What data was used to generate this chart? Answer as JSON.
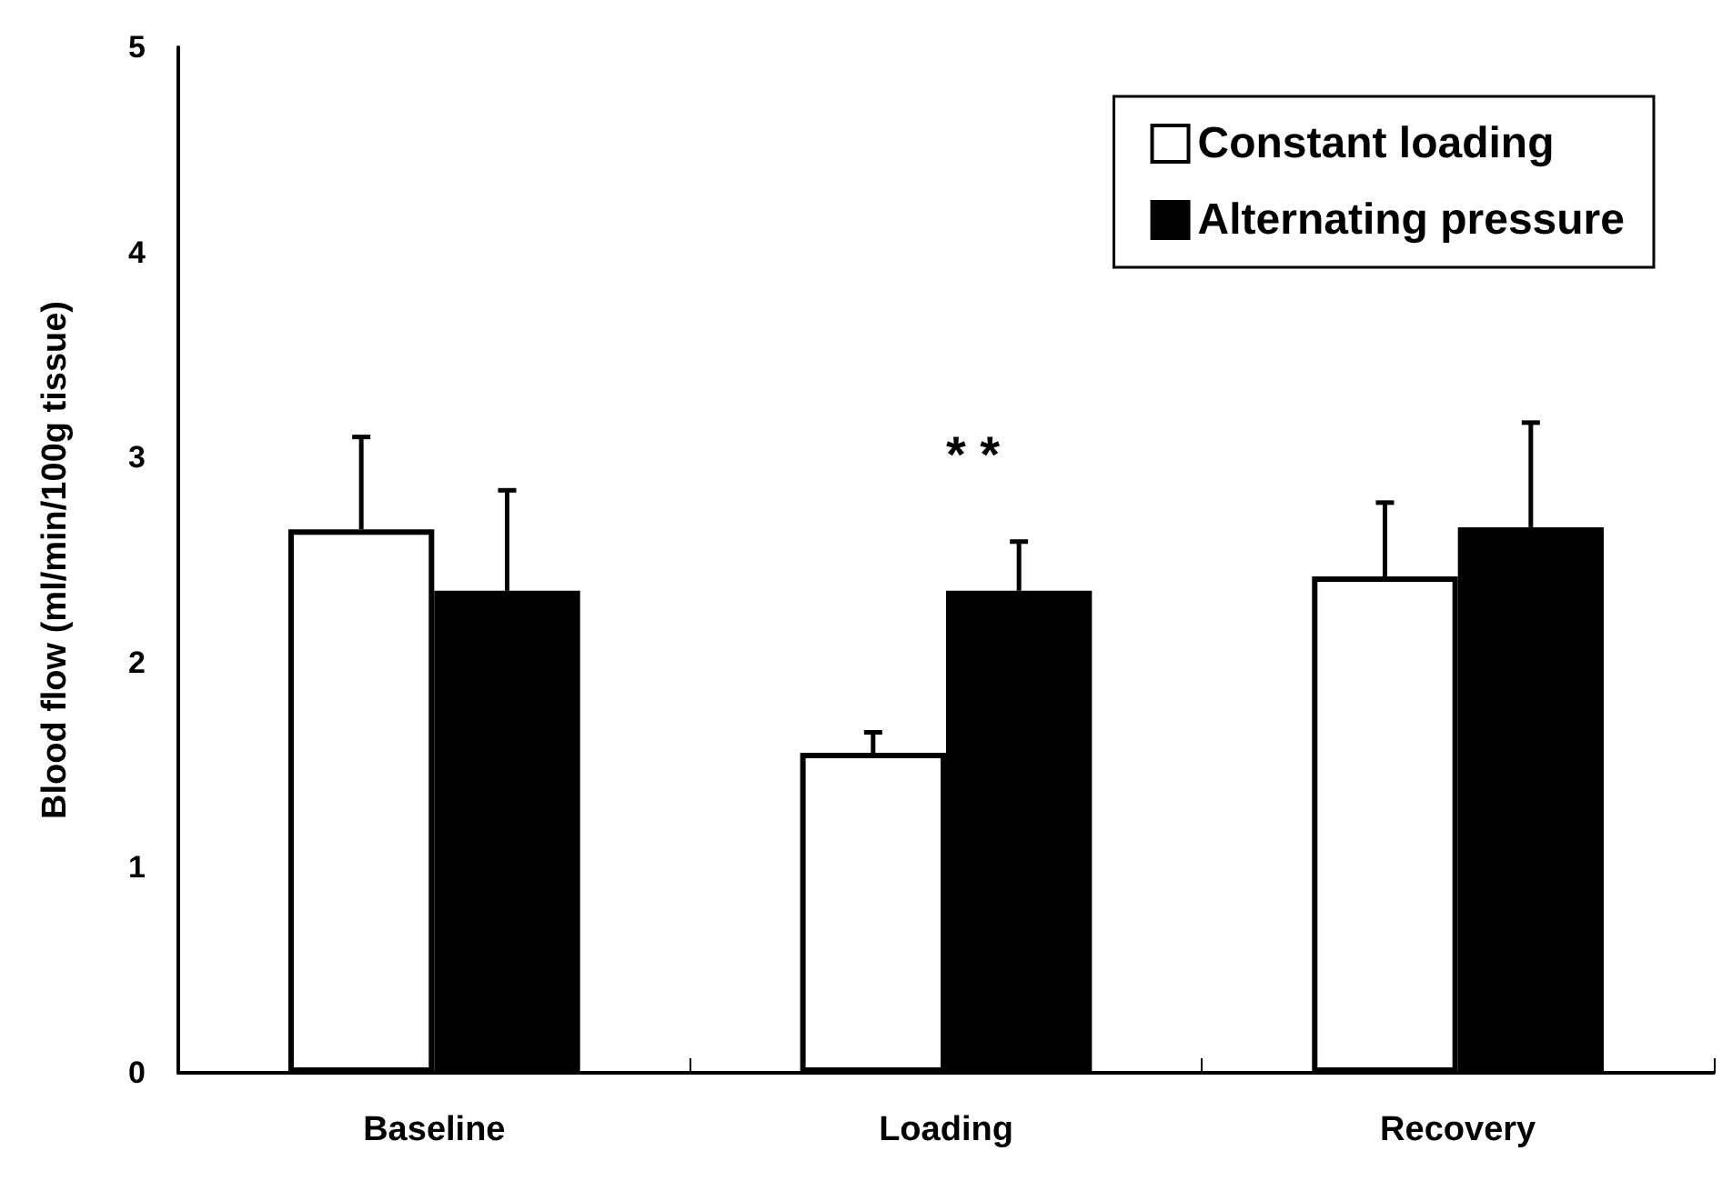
{
  "chart_data": {
    "type": "bar",
    "ylabel": "Blood flow (ml/min/100g tissue)",
    "categories": [
      "Baseline",
      "Loading",
      "Recovery"
    ],
    "series": [
      {
        "name": "Constant loading",
        "color": "#ffffff",
        "values": [
          2.65,
          1.56,
          2.42
        ],
        "errors": [
          [
            2.65,
            3.1
          ],
          [
            1.56,
            1.66
          ],
          [
            2.42,
            2.78
          ]
        ]
      },
      {
        "name": "Alternating pressure",
        "color": "#000000",
        "values": [
          2.35,
          2.35,
          2.66
        ],
        "errors": [
          [
            2.35,
            2.84
          ],
          [
            2.35,
            2.59
          ],
          [
            2.66,
            3.17
          ]
        ]
      }
    ],
    "annotations": [
      "* *"
    ],
    "ylim": [
      0,
      5
    ],
    "yticks": [
      0,
      1,
      2,
      3,
      4,
      5
    ],
    "grid": false,
    "legend": "top right"
  }
}
